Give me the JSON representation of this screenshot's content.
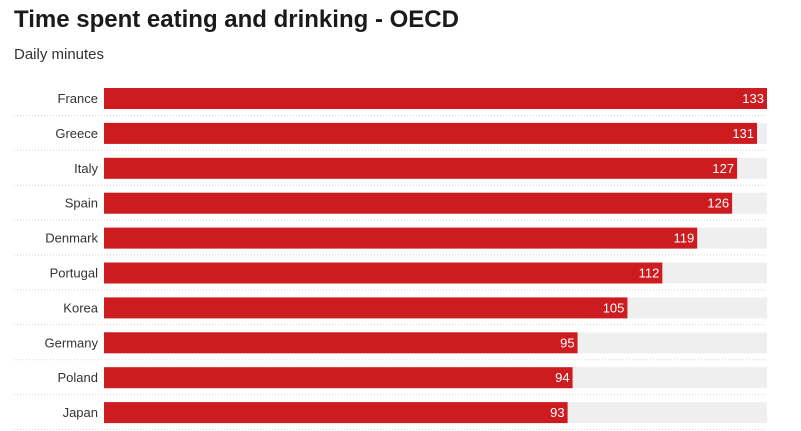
{
  "title": "Time spent eating and drinking - OECD",
  "subtitle": "Daily minutes",
  "colors": {
    "bar": "#cc1c1f",
    "track": "#efefef",
    "separator": "#d4d4d4"
  },
  "chart_data": {
    "type": "bar",
    "orientation": "horizontal",
    "title": "Time spent eating and drinking - OECD",
    "subtitle": "Daily minutes",
    "categories": [
      "France",
      "Greece",
      "Italy",
      "Spain",
      "Denmark",
      "Portugal",
      "Korea",
      "Germany",
      "Poland",
      "Japan"
    ],
    "values": [
      133,
      131,
      127,
      126,
      119,
      112,
      105,
      95,
      94,
      93
    ],
    "xlim": [
      0,
      133
    ],
    "data_labels": true,
    "grid": false,
    "legend": "none"
  }
}
